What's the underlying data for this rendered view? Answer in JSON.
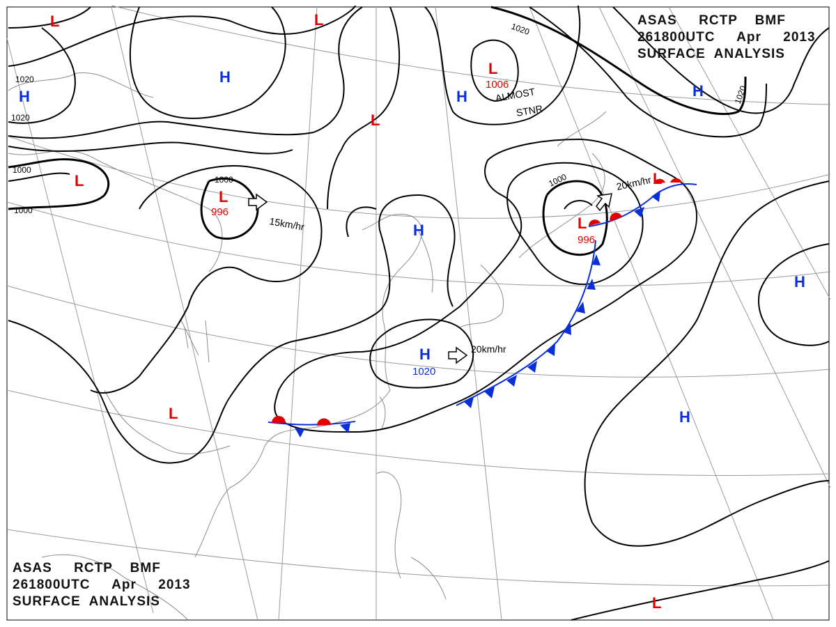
{
  "header": {
    "line1": "ASAS     RCTP    BMF",
    "line2": "261800UTC     Apr     2013",
    "line3": "SURFACE  ANALYSIS"
  },
  "pressure_systems": [
    {
      "type": "L",
      "label": "L",
      "value": ""
    },
    {
      "type": "L",
      "label": "L",
      "value": ""
    },
    {
      "type": "L",
      "label": "L",
      "value": "1006"
    },
    {
      "type": "L",
      "label": "L",
      "value": ""
    },
    {
      "type": "L",
      "label": "L",
      "value": ""
    },
    {
      "type": "L",
      "label": "L",
      "value": "996"
    },
    {
      "type": "L",
      "label": "L",
      "value": "996"
    },
    {
      "type": "L",
      "label": "L",
      "value": ""
    },
    {
      "type": "L",
      "label": "L",
      "value": ""
    },
    {
      "type": "L",
      "label": "L",
      "value": ""
    },
    {
      "type": "H",
      "label": "H",
      "value": ""
    },
    {
      "type": "H",
      "label": "H",
      "value": ""
    },
    {
      "type": "H",
      "label": "H",
      "value": ""
    },
    {
      "type": "H",
      "label": "H",
      "value": ""
    },
    {
      "type": "H",
      "label": "H",
      "value": ""
    },
    {
      "type": "H",
      "label": "H",
      "value": "1020"
    },
    {
      "type": "H",
      "label": "H",
      "value": ""
    },
    {
      "type": "H",
      "label": "H",
      "value": ""
    }
  ],
  "isobar_labels": [
    "1020",
    "1020",
    "1020",
    "1020",
    "1000",
    "1000",
    "1000",
    "1000"
  ],
  "motion_labels": [
    "15km/hr",
    "20km/hr",
    "20km/hr"
  ],
  "annotation": {
    "line1": "ALMOST",
    "line2": "STNR"
  },
  "colors": {
    "low": "#e00000",
    "high": "#0a2fd6",
    "isobar": "#000000",
    "coast": "#8c8c8c",
    "grid": "#9a9a9a",
    "cold_front": "#0a2fd6",
    "warm_front": "#e00000"
  }
}
